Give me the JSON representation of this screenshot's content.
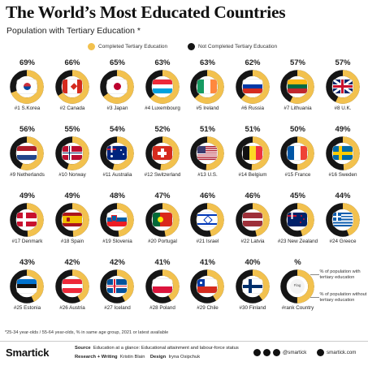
{
  "title": "The World’s Most Educated Countries",
  "subtitle": "Population with Tertiary Education *",
  "colors": {
    "completed": "#f2c14e",
    "not_completed": "#151515"
  },
  "chart_data": {
    "type": "pie",
    "title": "The World’s Most Educated Countries",
    "subtitle": "Population with Tertiary Education *",
    "legend": {
      "position": "top",
      "entries": [
        "Completed Tertiary Education",
        "Not Completed Tertiary Education"
      ]
    },
    "unit": "%",
    "countries": [
      {
        "rank": 1,
        "name": "S.Korea",
        "value": 69,
        "label": "69%",
        "caption": "#1 S.Korea",
        "flag": "south-korea-flag"
      },
      {
        "rank": 2,
        "name": "Canada",
        "value": 66,
        "label": "66%",
        "caption": "#2 Canada",
        "flag": "canada-flag"
      },
      {
        "rank": 3,
        "name": "Japan",
        "value": 65,
        "label": "65%",
        "caption": "#3 Japan",
        "flag": "japan-flag"
      },
      {
        "rank": 4,
        "name": "Luxembourg",
        "value": 63,
        "label": "63%",
        "caption": "#4 Luxembourg",
        "flag": "luxembourg-flag"
      },
      {
        "rank": 5,
        "name": "Ireland",
        "value": 63,
        "label": "63%",
        "caption": "#5 Ireland",
        "flag": "ireland-flag"
      },
      {
        "rank": 6,
        "name": "Russia",
        "value": 62,
        "label": "62%",
        "caption": "#6 Russia",
        "flag": "russia-flag"
      },
      {
        "rank": 7,
        "name": "Lithuania",
        "value": 57,
        "label": "57%",
        "caption": "#7 Lithuania",
        "flag": "lithuania-flag"
      },
      {
        "rank": 8,
        "name": "U.K.",
        "value": 57,
        "label": "57%",
        "caption": "#8 U.K.",
        "flag": "uk-flag"
      },
      {
        "rank": 9,
        "name": "Netherlands",
        "value": 56,
        "label": "56%",
        "caption": "#9 Netherlands",
        "flag": "netherlands-flag"
      },
      {
        "rank": 10,
        "name": "Norway",
        "value": 55,
        "label": "55%",
        "caption": "#10 Norway",
        "flag": "norway-flag"
      },
      {
        "rank": 11,
        "name": "Australia",
        "value": 54,
        "label": "54%",
        "caption": "#11 Australia",
        "flag": "australia-flag"
      },
      {
        "rank": 12,
        "name": "Switzerland",
        "value": 52,
        "label": "52%",
        "caption": "#12 Switzerland",
        "flag": "switzerland-flag"
      },
      {
        "rank": 13,
        "name": "U.S.",
        "value": 51,
        "label": "51%",
        "caption": "#13 U.S.",
        "flag": "usa-flag"
      },
      {
        "rank": 14,
        "name": "Belgium",
        "value": 51,
        "label": "51%",
        "caption": "#14 Belgium",
        "flag": "belgium-flag"
      },
      {
        "rank": 15,
        "name": "France",
        "value": 50,
        "label": "50%",
        "caption": "#15 France",
        "flag": "france-flag"
      },
      {
        "rank": 16,
        "name": "Sweden",
        "value": 49,
        "label": "49%",
        "caption": "#16 Sweden",
        "flag": "sweden-flag"
      },
      {
        "rank": 17,
        "name": "Denmark",
        "value": 49,
        "label": "49%",
        "caption": "#17 Denmark",
        "flag": "denmark-flag"
      },
      {
        "rank": 18,
        "name": "Spain",
        "value": 49,
        "label": "49%",
        "caption": "#18 Spain",
        "flag": "spain-flag"
      },
      {
        "rank": 19,
        "name": "Slovenia",
        "value": 48,
        "label": "48%",
        "caption": "#19 Slovenia",
        "flag": "slovenia-flag"
      },
      {
        "rank": 20,
        "name": "Portugal",
        "value": 47,
        "label": "47%",
        "caption": "#20 Portugal",
        "flag": "portugal-flag"
      },
      {
        "rank": 21,
        "name": "Israel",
        "value": 46,
        "label": "46%",
        "caption": "#21 Israel",
        "flag": "israel-flag"
      },
      {
        "rank": 22,
        "name": "Latvia",
        "value": 46,
        "label": "46%",
        "caption": "#22 Latvia",
        "flag": "latvia-flag"
      },
      {
        "rank": 23,
        "name": "New Zealand",
        "value": 45,
        "label": "45%",
        "caption": "#23 New Zealand",
        "flag": "new-zealand-flag"
      },
      {
        "rank": 24,
        "name": "Greece",
        "value": 44,
        "label": "44%",
        "caption": "#24 Greece",
        "flag": "greece-flag"
      },
      {
        "rank": 25,
        "name": "Estonia",
        "value": 43,
        "label": "43%",
        "caption": "#25 Estonia",
        "flag": "estonia-flag"
      },
      {
        "rank": 26,
        "name": "Austria",
        "value": 42,
        "label": "42%",
        "caption": "#26 Austria",
        "flag": "austria-flag"
      },
      {
        "rank": 27,
        "name": "Iceland",
        "value": 42,
        "label": "42%",
        "caption": "#27 Iceland",
        "flag": "iceland-flag"
      },
      {
        "rank": 28,
        "name": "Poland",
        "value": 41,
        "label": "41%",
        "caption": "#28 Poland",
        "flag": "poland-flag"
      },
      {
        "rank": 29,
        "name": "Chile",
        "value": 41,
        "label": "41%",
        "caption": "#29 Chile",
        "flag": "chile-flag"
      },
      {
        "rank": 30,
        "name": "Finland",
        "value": 40,
        "label": "40%",
        "caption": "#30 Finland",
        "flag": "finland-flag"
      }
    ],
    "key": {
      "pct": "%",
      "flag_text": "Flag",
      "caption": "#rank Country",
      "note_top": "% of population with tertiary education",
      "note_bottom": "% of population without tertiary education"
    }
  },
  "legend": {
    "completed": "Completed Tertiary Education",
    "not_completed": "Not Completed Tertiary Education"
  },
  "footnote": "*25-34 year-olds / 55-64 year-olds, % in same age group, 2021 or latest available",
  "footer": {
    "logo": "Smartick",
    "source_label": "Source",
    "source_text": "Education at a glance: Educational attainment and labour-force status",
    "research_label": "Research + Writing",
    "research_name": "Kristin Blain",
    "design_label": "Design",
    "design_name": "Iryna Osipchuk",
    "handle": "@smartick",
    "site": "smartick.com"
  }
}
